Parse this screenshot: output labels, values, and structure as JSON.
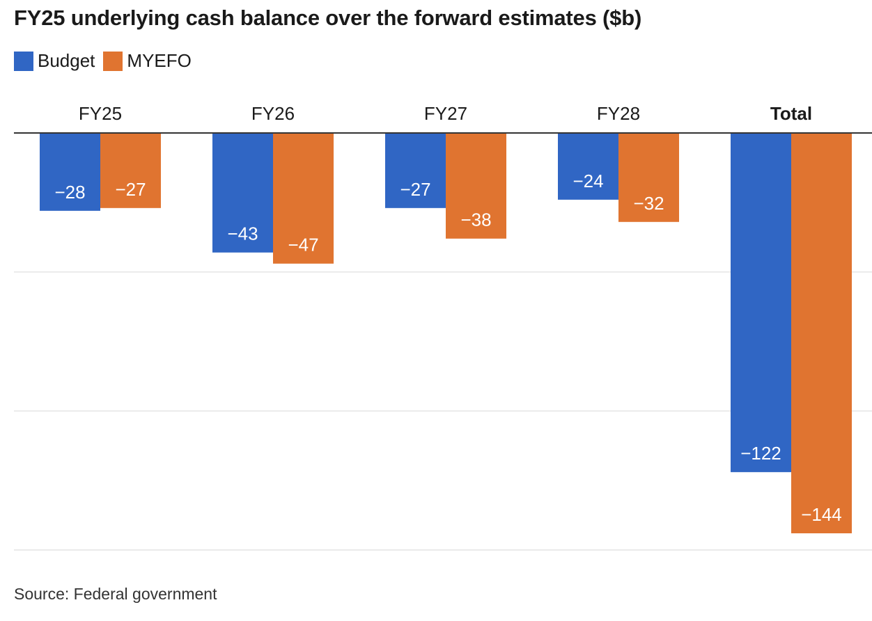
{
  "title": "FY25 underlying cash balance over the forward estimates ($b)",
  "source": "Source: Federal government",
  "colors": {
    "budget": "#3066c4",
    "myefo": "#e07430",
    "grid": "#dddddd",
    "axis": "#333333"
  },
  "chart_data": {
    "type": "bar",
    "categories": [
      "FY25",
      "FY26",
      "FY27",
      "FY28",
      "Total"
    ],
    "series": [
      {
        "name": "Budget",
        "values": [
          -28,
          -43,
          -27,
          -24,
          -122
        ]
      },
      {
        "name": "MYEFO",
        "values": [
          -27,
          -47,
          -38,
          -32,
          -144
        ]
      }
    ],
    "value_labels": [
      [
        "−28",
        "−43",
        "−27",
        "−24",
        "−122"
      ],
      [
        "−27",
        "−47",
        "−38",
        "−32",
        "−144"
      ]
    ],
    "ylim": [
      -150,
      0
    ],
    "grid_values": [
      0,
      -50,
      -100,
      -150
    ],
    "emphasized_category": "Total",
    "legend": "top-left",
    "grid": true
  }
}
